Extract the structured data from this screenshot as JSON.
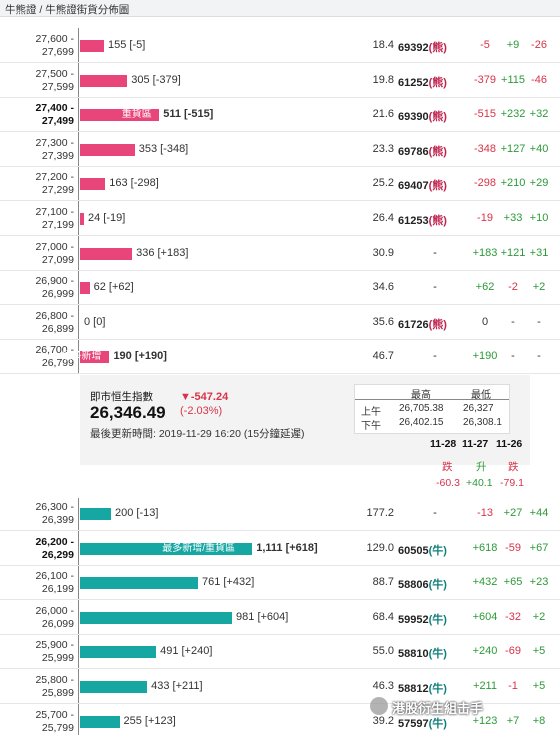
{
  "breadcrumb": "牛熊證 / 牛熊證街貨分佈圖",
  "bear_rows": [
    {
      "range_top": "27,600 -",
      "range_bottom": "27,699",
      "count": "155 [-5]",
      "distance": "18.4",
      "code": "69392",
      "type": "(熊)",
      "chg1": "-5",
      "chg2": "+9",
      "chg3": "-26",
      "tag": "",
      "bar_value": 155
    },
    {
      "range_top": "27,500 -",
      "range_bottom": "27,599",
      "count": "305 [-379]",
      "distance": "19.8",
      "code": "61252",
      "type": "(熊)",
      "chg1": "-379",
      "chg2": "+115",
      "chg3": "-46",
      "tag": "",
      "bar_value": 305
    },
    {
      "range_top": "27,400 -",
      "range_bottom": "27,499",
      "count": "511 [-515]",
      "distance": "21.6",
      "code": "69390",
      "type": "(熊)",
      "chg1": "-515",
      "chg2": "+232",
      "chg3": "+32",
      "tag": "重貨區",
      "bar_value": 511
    },
    {
      "range_top": "27,300 -",
      "range_bottom": "27,399",
      "count": "353 [-348]",
      "distance": "23.3",
      "code": "69786",
      "type": "(熊)",
      "chg1": "-348",
      "chg2": "+127",
      "chg3": "+40",
      "tag": "",
      "bar_value": 353
    },
    {
      "range_top": "27,200 -",
      "range_bottom": "27,299",
      "count": "163 [-298]",
      "distance": "25.2",
      "code": "69407",
      "type": "(熊)",
      "chg1": "-298",
      "chg2": "+210",
      "chg3": "+29",
      "tag": "",
      "bar_value": 163
    },
    {
      "range_top": "27,100 -",
      "range_bottom": "27,199",
      "count": "24 [-19]",
      "distance": "26.4",
      "code": "61253",
      "type": "(熊)",
      "chg1": "-19",
      "chg2": "+33",
      "chg3": "+10",
      "tag": "",
      "bar_value": 24
    },
    {
      "range_top": "27,000 -",
      "range_bottom": "27,099",
      "count": "336 [+183]",
      "distance": "30.9",
      "code": "-",
      "type": "",
      "chg1": "+183",
      "chg2": "+121",
      "chg3": "+31",
      "tag": "",
      "bar_value": 336
    },
    {
      "range_top": "26,900 -",
      "range_bottom": "26,999",
      "count": "62 [+62]",
      "distance": "34.6",
      "code": "-",
      "type": "",
      "chg1": "+62",
      "chg2": "-2",
      "chg3": "+2",
      "tag": "",
      "bar_value": 62
    },
    {
      "range_top": "26,800 -",
      "range_bottom": "26,899",
      "count": "0 [0]",
      "distance": "35.6",
      "code": "61726",
      "type": "(熊)",
      "chg1": "0",
      "chg2": "-",
      "chg3": "-",
      "tag": "",
      "bar_value": 0
    },
    {
      "range_top": "26,700 -",
      "range_bottom": "26,799",
      "count": "190 [+190]",
      "distance": "46.7",
      "code": "-",
      "type": "",
      "chg1": "+190",
      "chg2": "-",
      "chg3": "-",
      "tag": "最多新增",
      "bar_value": 190
    }
  ],
  "index_panel": {
    "title": "即市恒生指數",
    "value": "26,346.49",
    "change": "▼-547.24",
    "change_pct": "(-2.03%)",
    "updated_label": "最後更新時間: 2019-11-29 16:20 (15分鐘延遲)",
    "high_label": "最高",
    "low_label": "最低",
    "sessions": [
      {
        "name": "上午",
        "high": "26,705.38",
        "low": "26,327"
      },
      {
        "name": "下午",
        "high": "26,402.15",
        "low": "26,308.1"
      }
    ]
  },
  "daily_summary": {
    "dates": [
      "11-28",
      "11-27",
      "11-26"
    ],
    "labels": [
      "跌",
      "升",
      "跌"
    ],
    "values": [
      "-60.3",
      "+40.1",
      "-79.1"
    ]
  },
  "bull_rows": [
    {
      "range_top": "26,300 -",
      "range_bottom": "26,399",
      "count": "200 [-13]",
      "distance": "177.2",
      "code": "-",
      "type": "",
      "chg1": "-13",
      "chg2": "+27",
      "chg3": "+44",
      "tag": "",
      "bar_value": 200
    },
    {
      "range_top": "26,200 -",
      "range_bottom": "26,299",
      "count": "1,111 [+618]",
      "distance": "129.0",
      "code": "60505",
      "type": "(牛)",
      "chg1": "+618",
      "chg2": "-59",
      "chg3": "+67",
      "tag": "最多新增/重貨區",
      "bar_value": 1111
    },
    {
      "range_top": "26,100 -",
      "range_bottom": "26,199",
      "count": "761 [+432]",
      "distance": "88.7",
      "code": "58806",
      "type": "(牛)",
      "chg1": "+432",
      "chg2": "+65",
      "chg3": "+23",
      "tag": "",
      "bar_value": 761
    },
    {
      "range_top": "26,000 -",
      "range_bottom": "26,099",
      "count": "981 [+604]",
      "distance": "68.4",
      "code": "59952",
      "type": "(牛)",
      "chg1": "+604",
      "chg2": "-32",
      "chg3": "+2",
      "tag": "",
      "bar_value": 981
    },
    {
      "range_top": "25,900 -",
      "range_bottom": "25,999",
      "count": "491 [+240]",
      "distance": "55.0",
      "code": "58810",
      "type": "(牛)",
      "chg1": "+240",
      "chg2": "-69",
      "chg3": "+5",
      "tag": "",
      "bar_value": 491
    },
    {
      "range_top": "25,800 -",
      "range_bottom": "25,899",
      "count": "433 [+211]",
      "distance": "46.3",
      "code": "58812",
      "type": "(牛)",
      "chg1": "+211",
      "chg2": "-1",
      "chg3": "+5",
      "tag": "",
      "bar_value": 433
    },
    {
      "range_top": "25,700 -",
      "range_bottom": "25,799",
      "count": "255 [+123]",
      "distance": "39.2",
      "code": "57597",
      "type": "(牛)",
      "chg1": "+123",
      "chg2": "+7",
      "chg3": "+8",
      "tag": "",
      "bar_value": 255
    }
  ],
  "watermark": "港股衍生組击手",
  "colors": {
    "bear": "#e8457a",
    "bull": "#16a7a3",
    "negative": "#d8334a",
    "positive": "#2c9a39"
  }
}
